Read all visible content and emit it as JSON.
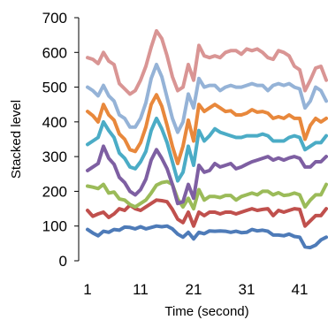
{
  "chart_data": {
    "type": "line",
    "title": "",
    "xlabel": "Time (second)",
    "ylabel": "Stacked level",
    "xlim": [
      1,
      46
    ],
    "ylim": [
      0,
      700
    ],
    "x_ticks": [
      1,
      11,
      21,
      31,
      41
    ],
    "y_ticks": [
      0,
      100,
      200,
      300,
      400,
      500,
      600,
      700
    ],
    "grid": false,
    "legend": "none",
    "x": [
      1,
      2,
      3,
      4,
      5,
      6,
      7,
      8,
      9,
      10,
      11,
      12,
      13,
      14,
      15,
      16,
      17,
      18,
      19,
      20,
      21,
      22,
      23,
      24,
      25,
      26,
      27,
      28,
      29,
      30,
      31,
      32,
      33,
      34,
      35,
      36,
      37,
      38,
      39,
      40,
      41,
      42,
      43,
      44,
      45,
      46
    ],
    "series": [
      {
        "color": "#4e7bb8",
        "values": [
          90,
          80,
          72,
          85,
          82,
          90,
          88,
          97,
          96,
          92,
          98,
          92,
          96,
          100,
          98,
          100,
          92,
          77,
          68,
          82,
          63,
          82,
          78,
          86,
          85,
          86,
          85,
          82,
          85,
          81,
          82,
          90,
          86,
          88,
          85,
          74,
          74,
          72,
          77,
          70,
          68,
          40,
          38,
          45,
          60,
          68
        ]
      },
      {
        "color": "#c0504d",
        "values": [
          145,
          128,
          135,
          140,
          125,
          135,
          150,
          145,
          160,
          150,
          145,
          155,
          165,
          175,
          173,
          170,
          148,
          120,
          110,
          140,
          100,
          140,
          130,
          140,
          140,
          135,
          140,
          140,
          135,
          140,
          145,
          150,
          145,
          148,
          150,
          130,
          145,
          140,
          145,
          150,
          148,
          100,
          115,
          130,
          130,
          150
        ]
      },
      {
        "color": "#9bbb59",
        "values": [
          215,
          212,
          208,
          220,
          195,
          198,
          178,
          175,
          162,
          155,
          165,
          175,
          195,
          218,
          225,
          228,
          220,
          178,
          155,
          180,
          150,
          205,
          175,
          185,
          185,
          182,
          188,
          188,
          175,
          185,
          190,
          195,
          190,
          200,
          200,
          190,
          196,
          188,
          190,
          195,
          190,
          155,
          175,
          190,
          190,
          220
        ]
      },
      {
        "color": "#7e5fa2",
        "values": [
          260,
          270,
          280,
          330,
          295,
          278,
          240,
          225,
          200,
          190,
          205,
          235,
          290,
          320,
          295,
          265,
          220,
          165,
          170,
          220,
          180,
          275,
          255,
          260,
          280,
          270,
          275,
          280,
          265,
          270,
          278,
          285,
          290,
          295,
          300,
          290,
          296,
          290,
          296,
          300,
          295,
          270,
          270,
          285,
          285,
          300
        ]
      },
      {
        "color": "#4bacc6",
        "values": [
          335,
          345,
          355,
          400,
          375,
          355,
          310,
          295,
          270,
          265,
          285,
          315,
          375,
          410,
          380,
          340,
          285,
          230,
          255,
          330,
          275,
          375,
          345,
          360,
          380,
          370,
          365,
          360,
          355,
          355,
          360,
          360,
          360,
          365,
          360,
          345,
          345,
          345,
          355,
          360,
          355,
          320,
          330,
          340,
          340,
          360
        ]
      },
      {
        "color": "#e8883c",
        "values": [
          430,
          418,
          400,
          450,
          420,
          405,
          365,
          350,
          320,
          315,
          340,
          385,
          450,
          478,
          445,
          390,
          330,
          280,
          330,
          405,
          345,
          450,
          430,
          440,
          450,
          440,
          430,
          432,
          420,
          420,
          425,
          435,
          428,
          430,
          425,
          410,
          415,
          410,
          420,
          410,
          410,
          350,
          390,
          410,
          400,
          410
        ]
      },
      {
        "color": "#95b3d7",
        "values": [
          500,
          490,
          475,
          505,
          475,
          460,
          420,
          410,
          385,
          385,
          410,
          455,
          525,
          565,
          530,
          470,
          410,
          370,
          400,
          480,
          440,
          525,
          500,
          505,
          505,
          490,
          500,
          505,
          500,
          500,
          505,
          510,
          505,
          505,
          490,
          505,
          510,
          505,
          510,
          500,
          495,
          440,
          460,
          500,
          490,
          460
        ]
      },
      {
        "color": "#d99594",
        "values": [
          585,
          580,
          568,
          600,
          575,
          565,
          510,
          495,
          480,
          490,
          520,
          560,
          615,
          662,
          640,
          590,
          530,
          490,
          500,
          565,
          520,
          620,
          590,
          585,
          590,
          585,
          600,
          605,
          605,
          595,
          610,
          605,
          610,
          600,
          585,
          580,
          605,
          600,
          590,
          560,
          550,
          490,
          520,
          555,
          560,
          520
        ]
      }
    ]
  }
}
